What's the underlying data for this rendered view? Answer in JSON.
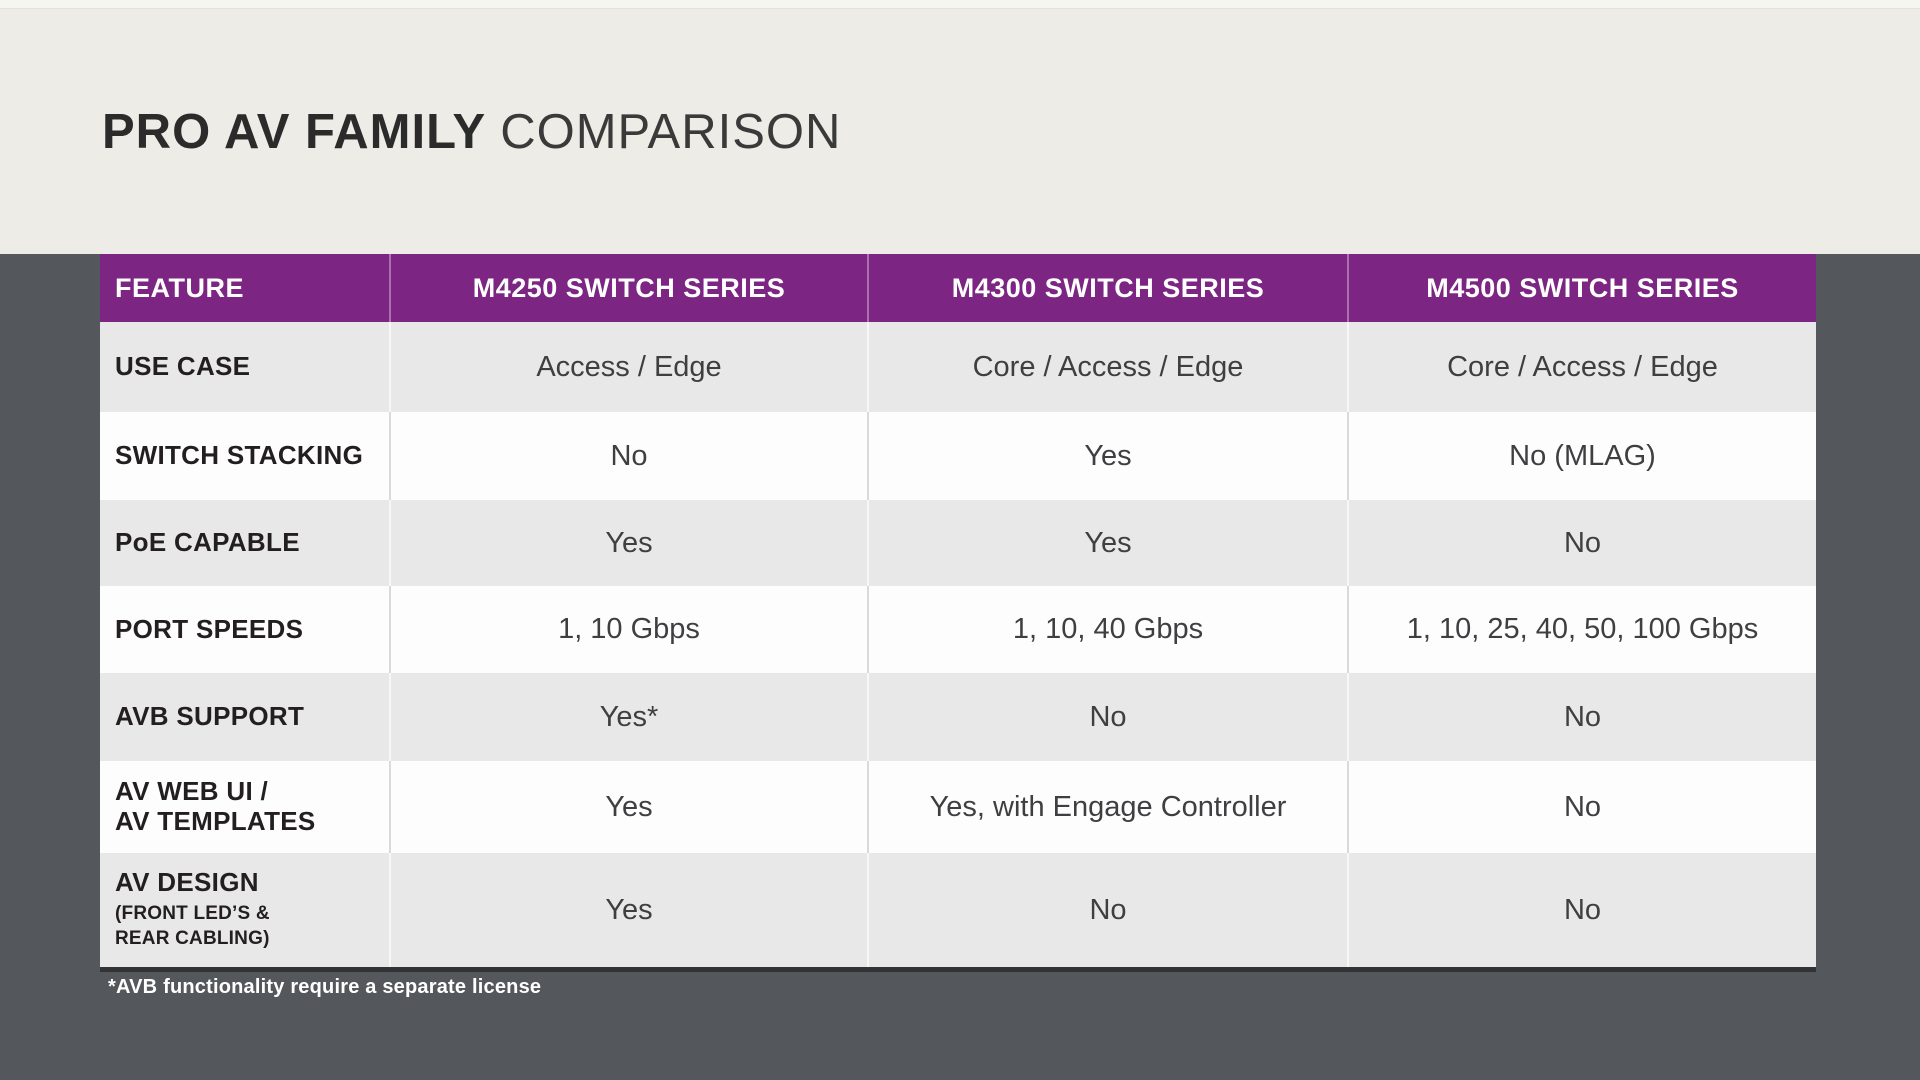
{
  "title": {
    "primary": "PRO AV FAMILY",
    "secondary": "COMPARISON"
  },
  "footnote": "*AVB functionality require a separate license",
  "colors": {
    "header_purple": "#7c2583",
    "background_dark_gray": "#54575b",
    "background_beige": "#edece7",
    "row_gray": "#e8e8e8",
    "row_white": "#fdfdfd",
    "header_text": "#ffffff",
    "feature_text": "#231f20",
    "value_text": "#3f3f42"
  },
  "chart_data": {
    "type": "table",
    "columns": [
      "FEATURE",
      "M4250 SWITCH SERIES",
      "M4300 SWITCH SERIES",
      "M4500 SWITCH SERIES"
    ],
    "rows": [
      {
        "feature": "USE CASE",
        "values": [
          "Access / Edge",
          "Core / Access / Edge",
          "Core / Access / Edge"
        ]
      },
      {
        "feature": "SWITCH STACKING",
        "values": [
          "No",
          "Yes",
          "No (MLAG)"
        ]
      },
      {
        "feature": "PoE CAPABLE",
        "values": [
          "Yes",
          "Yes",
          "No"
        ]
      },
      {
        "feature": "PORT SPEEDS",
        "values": [
          "1, 10 Gbps",
          "1, 10, 40 Gbps",
          "1, 10, 25, 40, 50, 100 Gbps"
        ]
      },
      {
        "feature": "AVB SUPPORT",
        "values": [
          "Yes*",
          "No",
          "No"
        ]
      },
      {
        "feature": "AV WEB UI /\nAV TEMPLATES",
        "values": [
          "Yes",
          "Yes, with Engage Controller",
          "No"
        ]
      },
      {
        "feature": "AV DESIGN",
        "feature_sub": "(FRONT LED’S &\nREAR CABLING)",
        "values": [
          "Yes",
          "No",
          "No"
        ]
      }
    ]
  }
}
